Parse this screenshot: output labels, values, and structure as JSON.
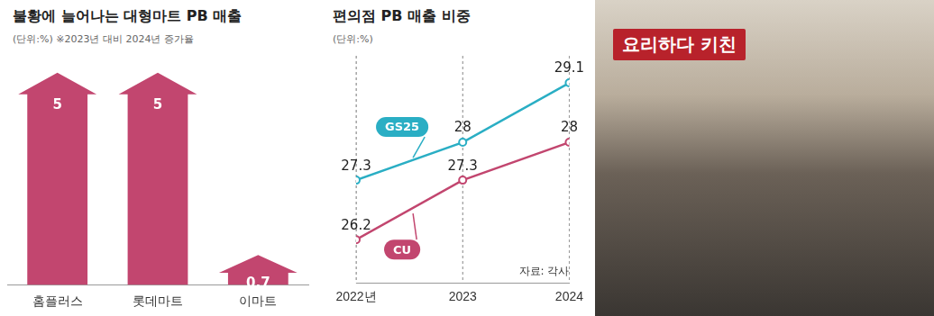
{
  "chart_data": [
    {
      "type": "bar",
      "title": "불황에 늘어나는 대형마트 PB 매출",
      "subtitle": "(단위:%)",
      "note": "※2023년 대비 2024년 증가율",
      "categories": [
        "홈플러스",
        "롯데마트",
        "이마트"
      ],
      "values": [
        5,
        5,
        0.7
      ],
      "color": "#c2466f",
      "ylim": [
        0,
        5.4
      ],
      "grid": false,
      "data_labels": true,
      "tick_labels": "x",
      "marker": "arrow"
    },
    {
      "type": "line",
      "title": "편의점 PB 매출 비중",
      "subtitle": "(단위:%)",
      "source": "자료: 각사",
      "categories": [
        "2022년",
        "2023",
        "2024"
      ],
      "series": [
        {
          "name": "GS25",
          "color": "#2aaec4",
          "values": [
            27.3,
            28,
            29.1
          ]
        },
        {
          "name": "CU",
          "color": "#c2466f",
          "values": [
            26.2,
            27.3,
            28
          ]
        }
      ],
      "ylim": [
        25.4,
        29.6
      ],
      "grid": true,
      "data_labels": true,
      "tick_labels": "x",
      "marker": "circle"
    }
  ],
  "photo": {
    "sign": "요리하다 키친"
  }
}
